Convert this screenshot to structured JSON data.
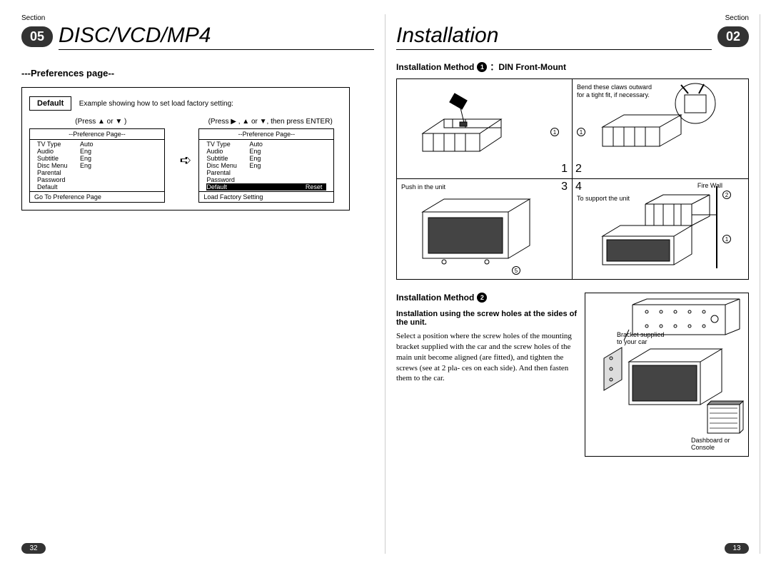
{
  "left": {
    "section_label": "Section",
    "section_num": "05",
    "title": "DISC/VCD/MP4",
    "subheading": "---Preferences page--",
    "default_label": "Default",
    "example_text": "Example showing how to set load factory setting:",
    "press_left": "(Press ▲ or ▼ )",
    "press_right": "(Press ▶ , ▲ or ▼, then press ENTER)",
    "panel_title": "--Preference Page--",
    "rows": [
      {
        "k": "TV Type",
        "v": "Auto"
      },
      {
        "k": "Audio",
        "v": "Eng"
      },
      {
        "k": "Subtitle",
        "v": "Eng"
      },
      {
        "k": "Disc Menu",
        "v": "Eng"
      },
      {
        "k": "Parental",
        "v": ""
      },
      {
        "k": "Password",
        "v": ""
      },
      {
        "k": "Default",
        "v": ""
      }
    ],
    "rows_hl": {
      "k": "Default",
      "v": "Reset"
    },
    "foot_left": "Go To Preference Page",
    "foot_right": "Load Factory Setting",
    "page_num": "32"
  },
  "right": {
    "section_label": "Section",
    "section_num": "02",
    "title": "Installation",
    "inst1_label": "Installation Method",
    "inst1_num": "1",
    "inst1_suffix": "：DIN Front-Mount",
    "cell1_text": "",
    "cell2_text": "Bend these claws outward for a tight fit, if necessary.",
    "cell3_text": "Push in the unit",
    "cell4_text1": "Fire Wall",
    "cell4_text2": "To support the unit",
    "cellnums": [
      "1",
      "2",
      "3",
      "4"
    ],
    "callouts": {
      "c1": "1",
      "c2": "2",
      "c5": "5"
    },
    "inst2_label": "Installation Method",
    "inst2_num": "2",
    "inst2_bold": "Installation using the screw holes at the sides of the unit.",
    "inst2_body": "Select a position where the screw holes of the mounting bracket supplied with the car and the screw holes of the main unit become aligned (are fitted), and tighten the screws (see at 2 pla- ces on each side). And then fasten them to the car.",
    "inst2_diag_label1": "Bracket supplied to your car",
    "inst2_diag_label2": "Dashboard or Console",
    "page_num": "13"
  },
  "colors": {
    "badge_bg": "#333333",
    "text": "#000000",
    "border": "#000000"
  }
}
